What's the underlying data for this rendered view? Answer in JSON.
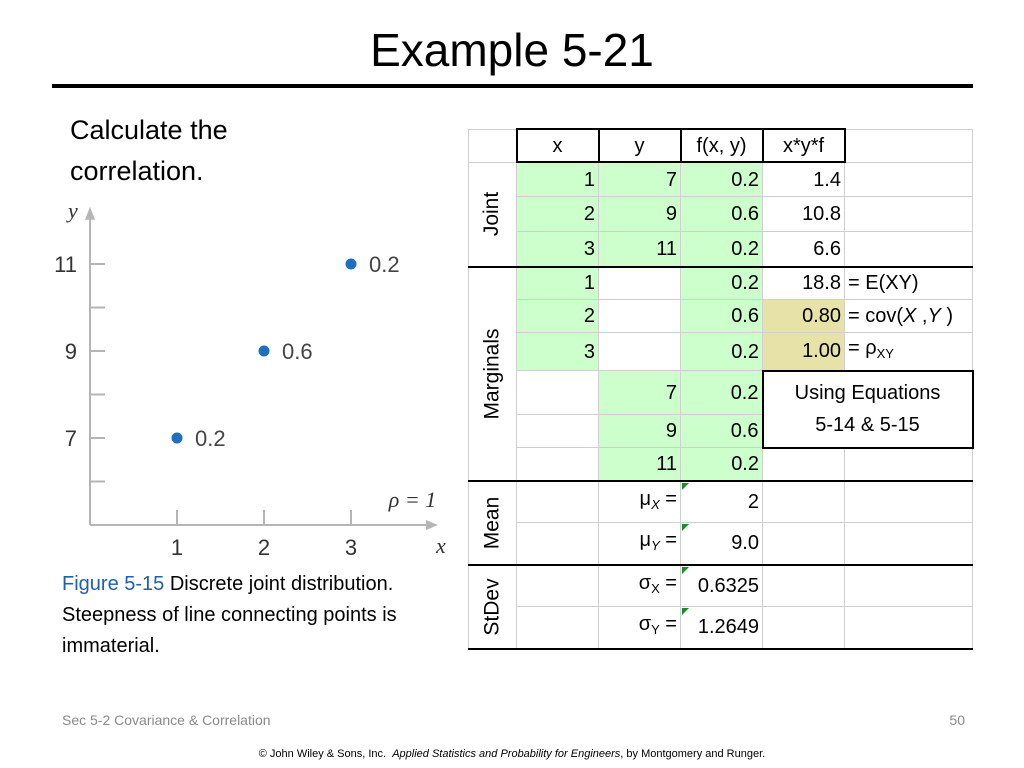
{
  "title": "Example 5-21",
  "prompt_lines": [
    "Calculate the",
    "correlation."
  ],
  "caption": {
    "figure": "Figure 5-15",
    "text": "Discrete joint distribution.  Steepness of line connecting points is immaterial."
  },
  "chart_data": {
    "type": "scatter",
    "xlabel": "x",
    "ylabel": "y",
    "xlim": [
      0.1,
      4.0
    ],
    "ylim": [
      4.9,
      12.2
    ],
    "x_ticks": [
      1,
      2,
      3
    ],
    "y_ticks": [
      7,
      9,
      11
    ],
    "points": [
      {
        "x": 1,
        "y": 7,
        "label": "0.2"
      },
      {
        "x": 2,
        "y": 9,
        "label": "0.6"
      },
      {
        "x": 3,
        "y": 11,
        "label": "0.2"
      }
    ],
    "annotation": "ρ = 1",
    "point_color": "#1f6fbf",
    "axis_color": "#b5b5b5"
  },
  "table": {
    "headers": [
      "x",
      "y",
      "f(x, y)",
      "x*y*f"
    ],
    "groups": {
      "joint": "Joint",
      "marginals": "Marginals",
      "mean": "Mean",
      "stdev": "StDev"
    },
    "joint": [
      {
        "x": "1",
        "y": "7",
        "f": "0.2",
        "xyf": "1.4"
      },
      {
        "x": "2",
        "y": "9",
        "f": "0.6",
        "xyf": "10.8"
      },
      {
        "x": "3",
        "y": "11",
        "f": "0.2",
        "xyf": "6.6"
      }
    ],
    "marginal_x": [
      {
        "x": "1",
        "f": "0.2",
        "val": "18.8",
        "note": "= E(XY)"
      },
      {
        "x": "2",
        "f": "0.6",
        "val": "0.80",
        "note_prefix": "= cov(",
        "note_x": "X",
        "note_comma": " ,",
        "note_y": "Y",
        "note_suffix": " )"
      },
      {
        "x": "3",
        "f": "0.2",
        "val": "1.00",
        "note_prefix": "= ρ",
        "note_sub": "XY"
      }
    ],
    "marginal_y": [
      {
        "y": "7",
        "f": "0.2"
      },
      {
        "y": "9",
        "f": "0.6"
      },
      {
        "y": "11",
        "f": "0.2"
      }
    ],
    "equations_note": [
      "Using Equations",
      "5-14 & 5-15"
    ],
    "mean": [
      {
        "sym": "μ",
        "sub": "X",
        "eq": " =",
        "val": "2"
      },
      {
        "sym": "μ",
        "sub": "Y",
        "eq": " =",
        "val": "9.0"
      }
    ],
    "stdev": [
      {
        "sym": "σ",
        "sub": "X",
        "eq": " =",
        "val": "0.6325"
      },
      {
        "sym": "σ",
        "sub": "Y",
        "eq": " =",
        "val": "1.2649"
      }
    ],
    "colors": {
      "green": "#ccffcc",
      "highlight": "#e6e2a8"
    }
  },
  "footer": {
    "section": "Sec 5-2 Covariance & Correlation",
    "page": "50",
    "copyright_prefix": "© John Wiley & Sons, Inc.",
    "copyright_book": "Applied Statistics and Probability for Engineers",
    "copyright_suffix": ", by Montgomery and Runger."
  }
}
